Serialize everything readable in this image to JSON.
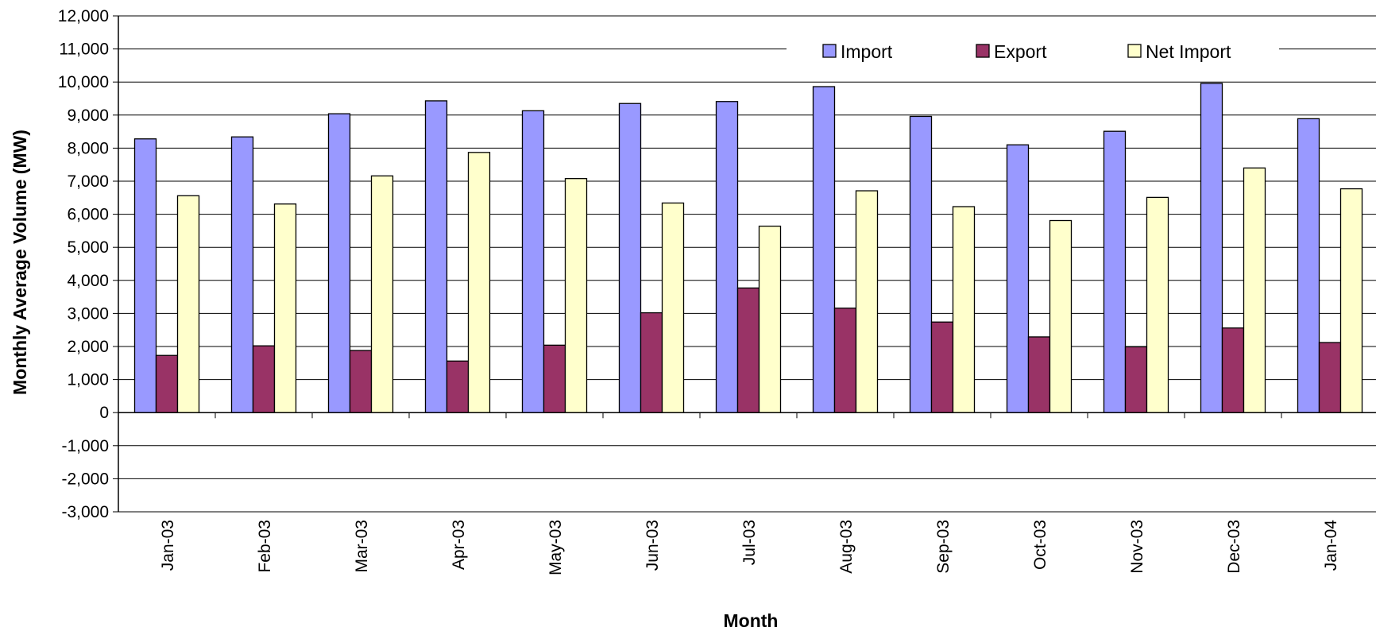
{
  "chart_data": {
    "type": "bar",
    "title": "",
    "xlabel": "Month",
    "ylabel": "Monthly Average Volume (MW)",
    "ylim": [
      -3000,
      12000
    ],
    "ytick_step": 1000,
    "grid": true,
    "legend_position": "top-right",
    "categories": [
      "Jan-03",
      "Feb-03",
      "Mar-03",
      "Apr-03",
      "May-03",
      "Jun-03",
      "Jul-03",
      "Aug-03",
      "Sep-03",
      "Oct-03",
      "Nov-03",
      "Dec-03",
      "Jan-04"
    ],
    "yticks": [
      "12,000",
      "11,000",
      "10,000",
      "9,000",
      "8,000",
      "7,000",
      "6,000",
      "5,000",
      "4,000",
      "3,000",
      "2,000",
      "1,000",
      "0",
      "-1,000",
      "-2,000",
      "-3,000"
    ],
    "series": [
      {
        "name": "Import",
        "color": "#9999ff",
        "values": [
          8280,
          8340,
          9040,
          9430,
          9130,
          9350,
          9410,
          9860,
          8960,
          8100,
          8510,
          9960,
          8890
        ]
      },
      {
        "name": "Export",
        "color": "#993366",
        "values": [
          1730,
          2020,
          1880,
          1560,
          2040,
          3020,
          3770,
          3160,
          2740,
          2290,
          1990,
          2560,
          2120
        ]
      },
      {
        "name": "Net Import",
        "color": "#ffffcc",
        "values": [
          6560,
          6310,
          7160,
          7870,
          7080,
          6340,
          5640,
          6710,
          6230,
          5810,
          6510,
          7400,
          6770
        ]
      }
    ]
  }
}
